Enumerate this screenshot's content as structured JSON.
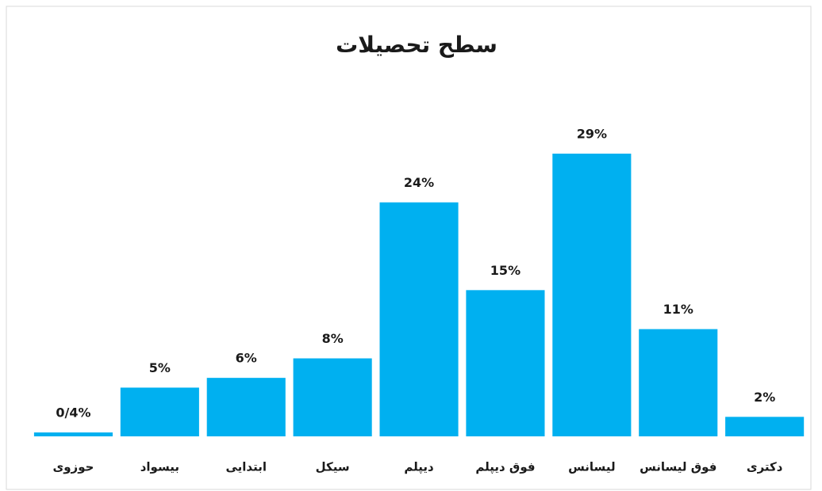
{
  "chart_data": {
    "type": "bar",
    "title": "سطح تحصیلات",
    "categories": [
      "حوزوی",
      "بیسواد",
      "ابتدایی",
      "سیکل",
      "دیپلم",
      "فوق دیپلم",
      "لیسانس",
      "فوق لیسانس",
      "دکتری"
    ],
    "values": [
      0.4,
      5,
      6,
      8,
      24,
      15,
      29,
      11,
      2
    ],
    "value_labels": [
      "0/4%",
      "5%",
      "6%",
      "8%",
      "24%",
      "15%",
      "29%",
      "11%",
      "2%"
    ],
    "color": "#00b0f0"
  }
}
